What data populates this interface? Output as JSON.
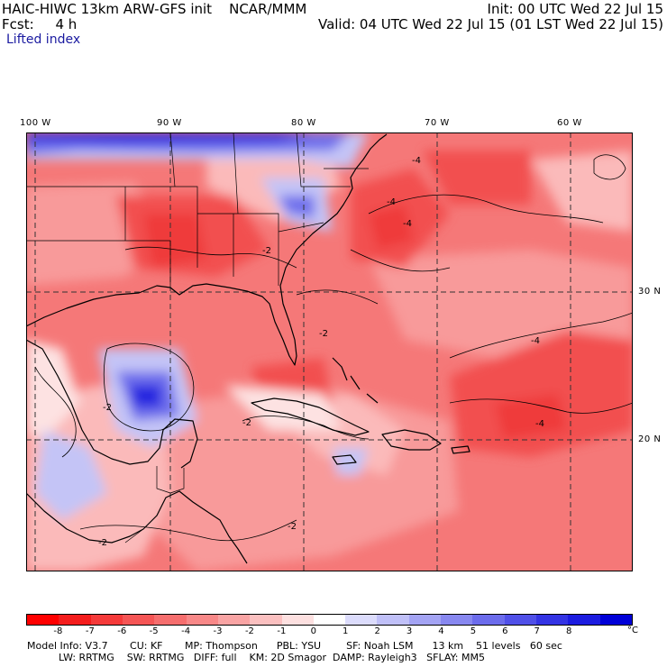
{
  "header": {
    "model_line": "HAIC-HIWC 13km ARW-GFS init    NCAR/MMM",
    "fcst_line": "Fcst:     4 h",
    "field_name": "Lifted index",
    "init_line": "Init: 00 UTC Wed 22 Jul 15",
    "valid_line": "Valid: 04 UTC Wed 22 Jul 15 (01 LST Wed 22 Jul 15)"
  },
  "map": {
    "lon_labels": [
      "100 W",
      "90 W",
      "80 W",
      "70 W",
      "60 W"
    ],
    "lat_labels": [
      "30 N",
      "20 N"
    ],
    "contour_labels": [
      "-4",
      "-4",
      "-4",
      "-4",
      "-2",
      "-2",
      "-2",
      "-2",
      "-2",
      "-2",
      "-4"
    ],
    "colors": {
      "deep_red": "#f03c3c",
      "red": "#f56464",
      "salmon": "#f89090",
      "light_pink": "#fbc0c0",
      "pale": "#fde6e6",
      "light_blue": "#c8c8f8",
      "blue": "#7878f0",
      "deep_blue": "#2020e0"
    }
  },
  "colorbar": {
    "colors": [
      "#ff0000",
      "#f41d1d",
      "#f53a3a",
      "#f55555",
      "#f66e6e",
      "#f88888",
      "#f9a4a4",
      "#fbc0c0",
      "#fde0e0",
      "#ffffff",
      "#dcdcfc",
      "#c0c0f8",
      "#a4a4f4",
      "#8888f0",
      "#6c6cec",
      "#5050e8",
      "#3434e4",
      "#1c1ce0",
      "#0000d8"
    ],
    "labels": [
      "-8",
      "-7",
      "-6",
      "-5",
      "-4",
      "-3",
      "-2",
      "-1",
      "0",
      "1",
      "2",
      "3",
      "4",
      "5",
      "6",
      "7",
      "8"
    ],
    "unit": "°C"
  },
  "model_info": {
    "line1": "Model Info: V3.7       CU: KF       MP: Thompson      PBL: YSU        SF: Noah LSM      13 km    51 levels   60 sec",
    "line2": "          LW: RRTMG    SW: RRTMG   DIFF: full    KM: 2D Smagor  DAMP: Rayleigh3   SFLAY: MM5"
  }
}
